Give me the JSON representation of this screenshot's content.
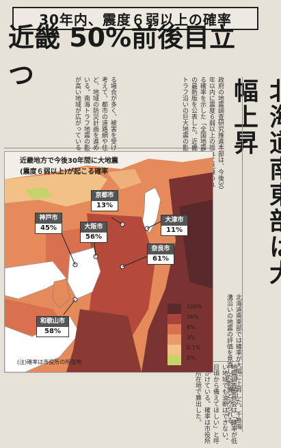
{
  "header": {
    "title": "30年内、震度６弱以上の確率"
  },
  "headline": {
    "text": "近畿 50%前後目立つ"
  },
  "vheadline": {
    "text": "北海道南東部は大幅上昇"
  },
  "map": {
    "title_line1": "近畿地方で今後30年間に大地震",
    "title_line2a": "(震度６弱以上)",
    "title_line2b": "が起こる確率",
    "cities": [
      {
        "name": "京都市",
        "value": "13%"
      },
      {
        "name": "大阪市",
        "value": "56%"
      },
      {
        "name": "神戸市",
        "value": "45%"
      },
      {
        "name": "大津市",
        "value": "11%"
      },
      {
        "name": "奈良市",
        "value": "61%"
      },
      {
        "name": "和歌山市",
        "value": "58%"
      }
    ],
    "legend": [
      {
        "label": "100%",
        "color": "#5a2a2a"
      },
      {
        "label": "26%",
        "color": "#a8443a"
      },
      {
        "label": "6%",
        "color": "#d9704f"
      },
      {
        "label": "3%",
        "color": "#ea9a6a"
      },
      {
        "label": "0.1%",
        "color": "#f3c08a"
      },
      {
        "label": "0%",
        "color": "#c6d36b"
      }
    ],
    "note": "(注)確率は市役所の所在地"
  },
  "columns": {
    "top_left": "る場合が多く、被害を受けた際の対策を考えて、都市の道路網や住宅の耐震化など、地域の防災計画を進めるよう求めている。南海トラフ地震の影響により確率が高い地域が広がっている。",
    "top_mid": "政府の地震調査研究推進本部は、今後30年以内に震度６弱以上の揺れに見舞われる確率を示した「全国地震動予測地図」の最新版を公表した。近畿地方では南海トラフ沿いの巨大地震の影響で、",
    "right_lower": "北海道南東部では確率が大幅に上昇した。千島海溝沿いの地震の評価を見直した影響とみられる。",
    "bottom": "地震調査委員会は「確率が低い地域でも油断はできない。日頃から備えてほしい」と呼びかけている。確率は市役所の所在地で算出した。"
  }
}
